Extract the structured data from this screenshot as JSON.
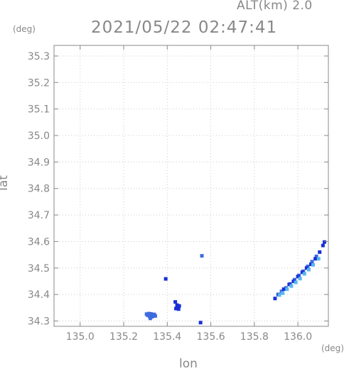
{
  "header": {
    "alt_label": "ALT(km) 2.0",
    "timestamp": "2021/05/22 02:47:41"
  },
  "axes": {
    "y_unit": "(deg)",
    "x_unit": "(deg)",
    "xlabel": "lon",
    "ylabel": "lat"
  },
  "colors": {
    "axis": "#888888",
    "grid": "#cccccc",
    "echo_strong": "#1a2fd6",
    "echo_mid": "#3f6be0",
    "echo_light": "#58b8ee"
  },
  "chart_data": {
    "type": "scatter",
    "title": "2021/05/22 02:47:41",
    "xlabel": "lon",
    "ylabel": "lat",
    "xlim": [
      134.88,
      136.14
    ],
    "ylim": [
      34.28,
      35.34
    ],
    "xticks": [
      135.0,
      135.2,
      135.4,
      135.6,
      135.8,
      136.0
    ],
    "xtick_labels": [
      "135.0",
      "135.2",
      "135.4",
      "135.6",
      "135.8",
      "136.0"
    ],
    "yticks": [
      34.3,
      34.4,
      34.5,
      34.6,
      34.7,
      34.8,
      34.9,
      35.0,
      35.1,
      35.2,
      35.3
    ],
    "ytick_labels": [
      "34.3",
      "34.4",
      "34.5",
      "34.6",
      "34.7",
      "34.8",
      "34.9",
      "35.0",
      "35.1",
      "35.2",
      "35.3"
    ],
    "grid": true,
    "series": [
      {
        "level": "mid",
        "points": [
          [
            135.305,
            34.326
          ],
          [
            135.315,
            34.328
          ],
          [
            135.325,
            34.327
          ],
          [
            135.335,
            34.322
          ],
          [
            135.318,
            34.318
          ],
          [
            135.33,
            34.316
          ],
          [
            135.322,
            34.31
          ],
          [
            135.34,
            34.325
          ],
          [
            135.31,
            34.322
          ],
          [
            135.345,
            34.319
          ],
          [
            135.559,
            34.546
          ],
          [
            135.925,
            34.412
          ],
          [
            135.945,
            34.425
          ],
          [
            135.965,
            34.44
          ],
          [
            135.985,
            34.456
          ],
          [
            136.005,
            34.472
          ],
          [
            136.025,
            34.488
          ],
          [
            136.045,
            34.506
          ],
          [
            136.065,
            34.524
          ],
          [
            136.085,
            34.544
          ]
        ]
      },
      {
        "level": "strong",
        "points": [
          [
            135.393,
            34.459
          ],
          [
            135.437,
            34.372
          ],
          [
            135.445,
            34.36
          ],
          [
            135.455,
            34.357
          ],
          [
            135.44,
            34.347
          ],
          [
            135.452,
            34.345
          ],
          [
            135.553,
            34.294
          ],
          [
            135.895,
            34.385
          ],
          [
            135.91,
            34.4
          ],
          [
            135.935,
            34.42
          ],
          [
            135.96,
            34.438
          ],
          [
            135.98,
            34.45
          ],
          [
            136.0,
            34.468
          ],
          [
            136.02,
            34.484
          ],
          [
            136.04,
            34.5
          ],
          [
            136.06,
            34.514
          ],
          [
            136.08,
            34.535
          ],
          [
            136.1,
            34.56
          ],
          [
            136.115,
            34.585
          ],
          [
            136.122,
            34.598
          ]
        ]
      },
      {
        "level": "light",
        "points": [
          [
            135.915,
            34.398
          ],
          [
            135.93,
            34.405
          ],
          [
            135.95,
            34.42
          ],
          [
            135.97,
            34.432
          ],
          [
            135.99,
            34.446
          ],
          [
            136.01,
            34.46
          ],
          [
            136.03,
            34.478
          ],
          [
            136.05,
            34.494
          ],
          [
            136.07,
            34.512
          ],
          [
            136.095,
            34.535
          ]
        ]
      }
    ]
  }
}
